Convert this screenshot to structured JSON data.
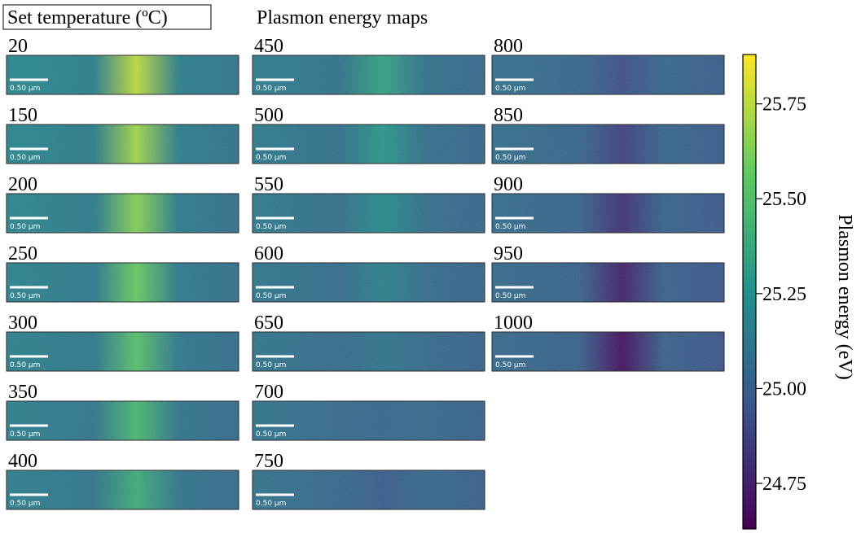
{
  "header": {
    "title": "Set temperature (ºC)",
    "subtitle": "Plasmon energy maps"
  },
  "maps": [
    {
      "label": "20",
      "scale_bar": "0.50 µm"
    },
    {
      "label": "150",
      "scale_bar": "0.50 µm"
    },
    {
      "label": "200",
      "scale_bar": "0.50 µm"
    },
    {
      "label": "250",
      "scale_bar": "0.50 µm"
    },
    {
      "label": "300",
      "scale_bar": "0.50 µm"
    },
    {
      "label": "350",
      "scale_bar": "0.50 µm"
    },
    {
      "label": "400",
      "scale_bar": "0.50 µm"
    },
    {
      "label": "450",
      "scale_bar": "0.50 µm"
    },
    {
      "label": "500",
      "scale_bar": "0.50 µm"
    },
    {
      "label": "550",
      "scale_bar": "0.50 µm"
    },
    {
      "label": "600",
      "scale_bar": "0.50 µm"
    },
    {
      "label": "650",
      "scale_bar": "0.50 µm"
    },
    {
      "label": "700",
      "scale_bar": "0.50 µm"
    },
    {
      "label": "750",
      "scale_bar": "0.50 µm"
    },
    {
      "label": "800",
      "scale_bar": "0.50 µm"
    },
    {
      "label": "850",
      "scale_bar": "0.50 µm"
    },
    {
      "label": "900",
      "scale_bar": "0.50 µm"
    },
    {
      "label": "950",
      "scale_bar": "0.50 µm"
    },
    {
      "label": "1000",
      "scale_bar": "0.50 µm"
    }
  ],
  "colorbar": {
    "label": "Plasmon energy (eV)",
    "lim": [
      24.63,
      25.88
    ],
    "ticks": [
      24.75,
      {
        "value": 25,
        "label": "25.00"
      },
      25.25,
      {
        "value": 25.5,
        "label": "25.50"
      },
      25.75
    ]
  }
}
